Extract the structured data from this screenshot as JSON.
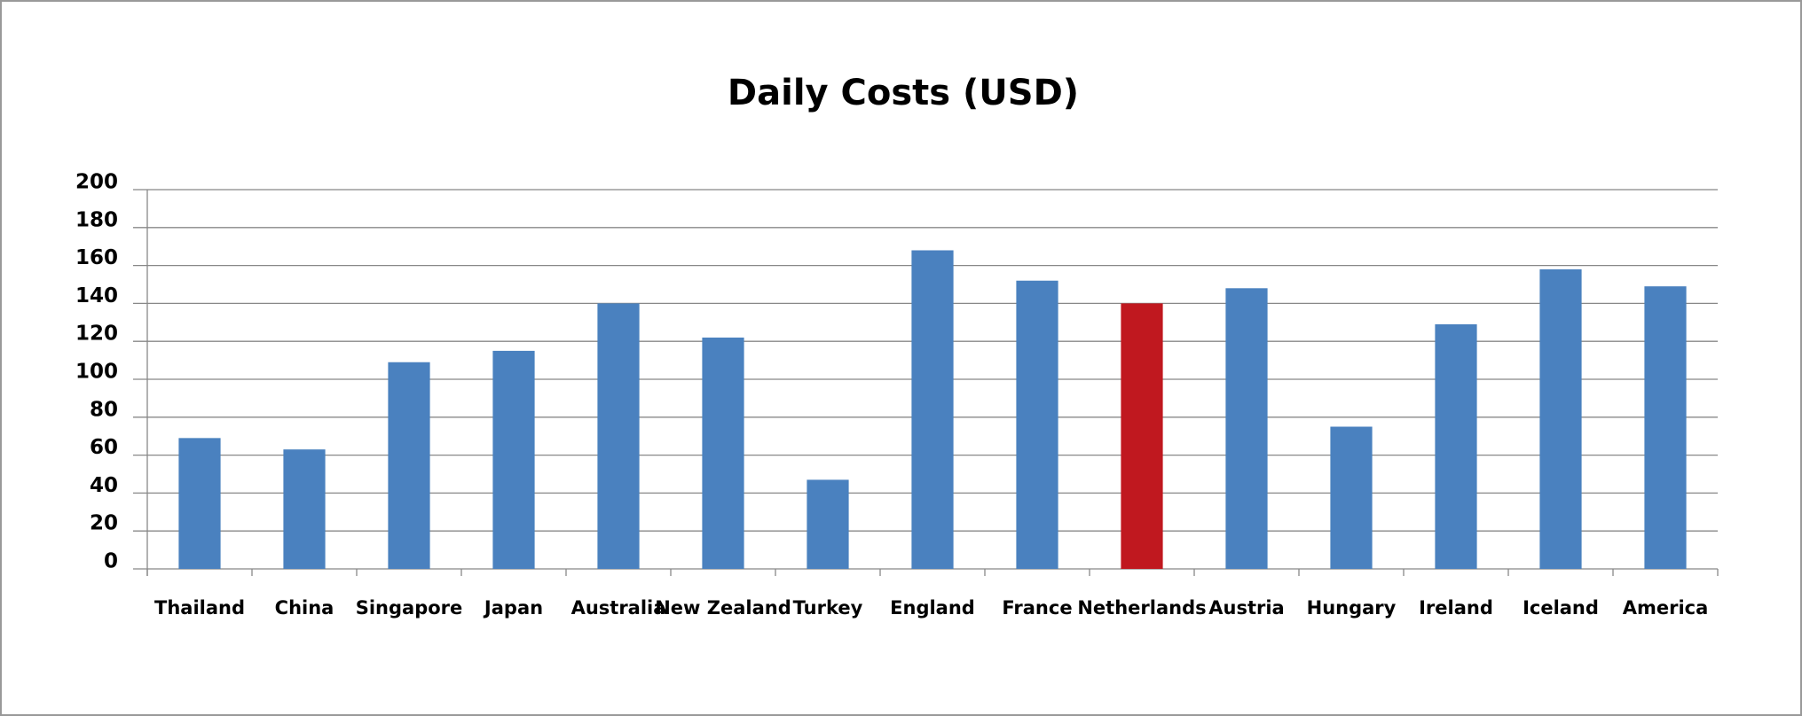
{
  "chart_data": {
    "type": "bar",
    "title": "Daily  Costs  (USD)",
    "categories": [
      "Thailand",
      "China",
      "Singapore",
      "Japan",
      "Australia",
      "New  Zealand",
      "Turkey",
      "England",
      "France",
      "Netherlands",
      "Austria",
      "Hungary",
      "Ireland",
      "Iceland",
      "America"
    ],
    "values": [
      69,
      63,
      109,
      115,
      140,
      122,
      47,
      168,
      152,
      140,
      148,
      75,
      129,
      158,
      149
    ],
    "colors": [
      "#4a81bf",
      "#4a81bf",
      "#4a81bf",
      "#4a81bf",
      "#4a81bf",
      "#4a81bf",
      "#4a81bf",
      "#4a81bf",
      "#4a81bf",
      "#c0181f",
      "#4a81bf",
      "#4a81bf",
      "#4a81bf",
      "#4a81bf",
      "#4a81bf"
    ],
    "ylim": [
      0,
      200
    ],
    "yticks": [
      0,
      20,
      40,
      60,
      80,
      100,
      120,
      140,
      160,
      180,
      200
    ],
    "grid": true
  }
}
